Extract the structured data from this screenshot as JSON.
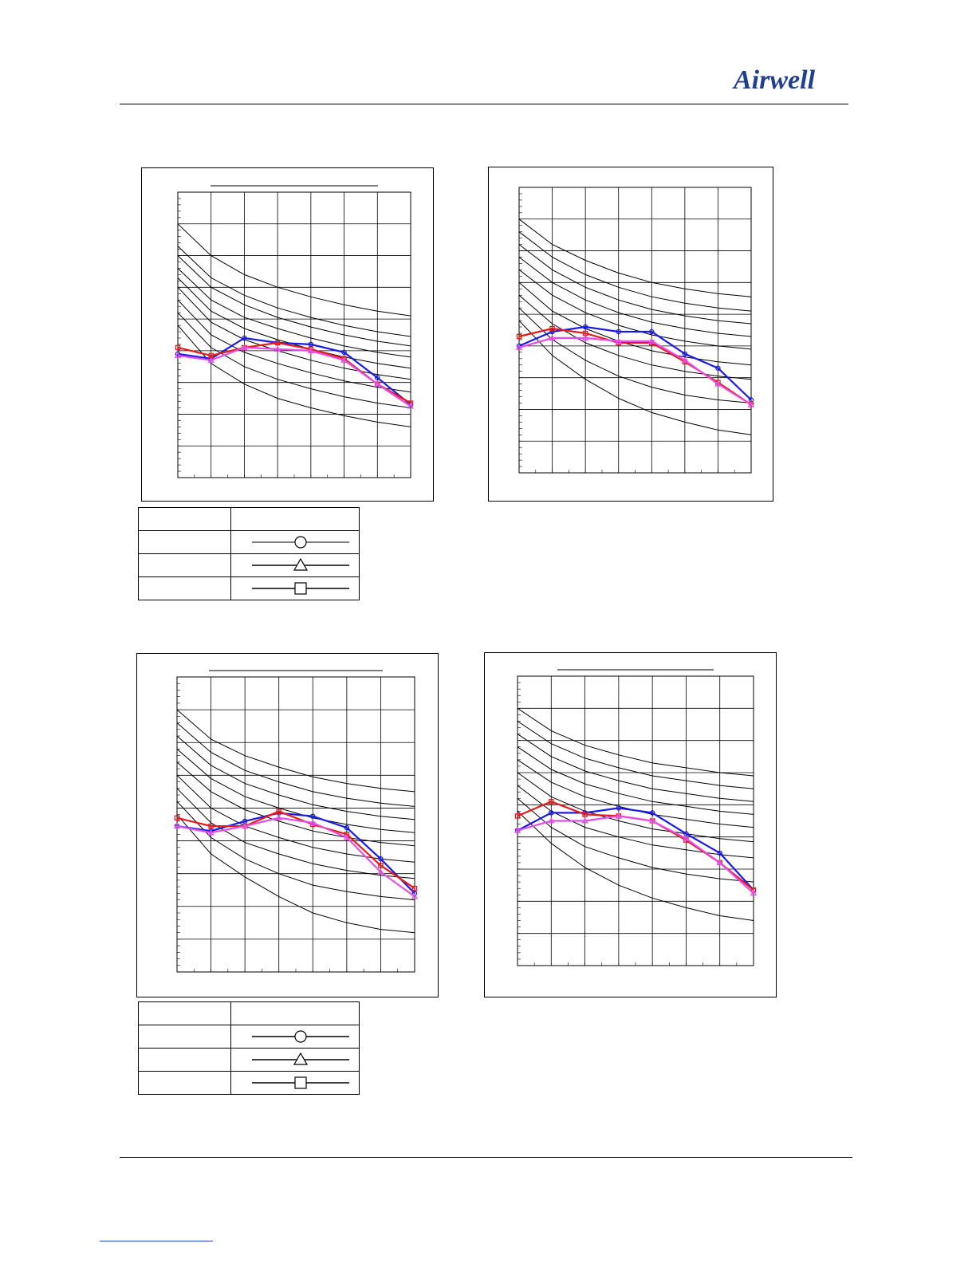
{
  "header": {
    "logo_text": "Airwell",
    "brand_color": "#1f3f93"
  },
  "colors": {
    "blue": "#1a1ae6",
    "red": "#e61a1a",
    "magenta": "#e64de6",
    "curve": "#000000"
  },
  "legends": [
    {
      "rows": [
        {
          "label": "",
          "marker": "circle"
        },
        {
          "label": "",
          "marker": "triangle"
        },
        {
          "label": "",
          "marker": "square"
        }
      ]
    },
    {
      "rows": [
        {
          "label": "",
          "marker": "circle"
        },
        {
          "label": "",
          "marker": "triangle"
        },
        {
          "label": "",
          "marker": "square"
        }
      ]
    }
  ],
  "chart_data": [
    {
      "type": "line",
      "title": "",
      "xlabel": "",
      "ylabel": "",
      "grid": true,
      "xlim": [
        0,
        7
      ],
      "ylim": [
        0,
        9
      ],
      "x": [
        0,
        1,
        2,
        3,
        4,
        5,
        6,
        7
      ],
      "reference_curves": [
        [
          8.0,
          7.0,
          6.4,
          6.0,
          5.7,
          5.45,
          5.25,
          5.1
        ],
        [
          7.3,
          6.3,
          5.75,
          5.35,
          5.05,
          4.8,
          4.6,
          4.45
        ],
        [
          7.0,
          6.0,
          5.45,
          5.05,
          4.75,
          4.5,
          4.3,
          4.15
        ],
        [
          6.6,
          5.6,
          5.05,
          4.7,
          4.4,
          4.15,
          3.95,
          3.8
        ],
        [
          6.3,
          5.25,
          4.7,
          4.35,
          4.05,
          3.8,
          3.6,
          3.45
        ],
        [
          6.0,
          4.9,
          4.35,
          4.0,
          3.7,
          3.45,
          3.25,
          3.1
        ],
        [
          5.6,
          4.5,
          3.95,
          3.6,
          3.3,
          3.05,
          2.85,
          2.7
        ],
        [
          5.2,
          4.1,
          3.5,
          3.1,
          2.8,
          2.55,
          2.35,
          2.2
        ],
        [
          4.8,
          3.6,
          2.95,
          2.5,
          2.2,
          1.95,
          1.75,
          1.6
        ]
      ],
      "series": [
        {
          "marker": "circle",
          "color": "blue",
          "values": [
            3.9,
            3.75,
            4.4,
            4.25,
            4.2,
            3.95,
            3.15,
            2.3
          ]
        },
        {
          "marker": "square",
          "color": "red",
          "values": [
            4.1,
            3.85,
            4.1,
            4.25,
            4.05,
            3.75,
            2.95,
            2.35
          ]
        },
        {
          "marker": "triangle",
          "color": "magenta",
          "values": [
            3.85,
            3.7,
            4.1,
            4.05,
            4.0,
            3.7,
            2.95,
            2.25
          ]
        }
      ]
    },
    {
      "type": "line",
      "title": "",
      "xlabel": "",
      "ylabel": "",
      "grid": true,
      "xlim": [
        0,
        7
      ],
      "ylim": [
        0,
        9
      ],
      "x": [
        0,
        1,
        2,
        3,
        4,
        5,
        6,
        7
      ],
      "reference_curves": [
        [
          8.0,
          7.2,
          6.7,
          6.3,
          6.0,
          5.8,
          5.65,
          5.55
        ],
        [
          7.6,
          6.8,
          6.25,
          5.85,
          5.55,
          5.35,
          5.2,
          5.1
        ],
        [
          7.2,
          6.4,
          5.85,
          5.45,
          5.15,
          4.95,
          4.8,
          4.7
        ],
        [
          6.8,
          6.0,
          5.45,
          5.05,
          4.75,
          4.55,
          4.4,
          4.3
        ],
        [
          6.4,
          5.6,
          5.05,
          4.65,
          4.35,
          4.15,
          4.0,
          3.9
        ],
        [
          6.0,
          5.1,
          4.55,
          4.15,
          3.85,
          3.65,
          3.5,
          3.4
        ],
        [
          5.6,
          4.7,
          4.1,
          3.7,
          3.4,
          3.2,
          3.05,
          2.95
        ],
        [
          5.2,
          4.2,
          3.55,
          3.05,
          2.7,
          2.45,
          2.3,
          2.2
        ],
        [
          4.8,
          3.7,
          2.95,
          2.35,
          1.9,
          1.6,
          1.35,
          1.2
        ]
      ],
      "series": [
        {
          "marker": "circle",
          "color": "blue",
          "values": [
            4.0,
            4.45,
            4.6,
            4.45,
            4.45,
            3.75,
            3.3,
            2.3
          ]
        },
        {
          "marker": "square",
          "color": "red",
          "values": [
            4.3,
            4.55,
            4.4,
            4.1,
            4.1,
            3.5,
            2.85,
            2.15
          ]
        },
        {
          "marker": "triangle",
          "color": "magenta",
          "values": [
            3.95,
            4.25,
            4.25,
            4.15,
            4.15,
            3.55,
            2.8,
            2.15
          ]
        }
      ]
    },
    {
      "type": "line",
      "title": "",
      "xlabel": "",
      "ylabel": "",
      "grid": true,
      "xlim": [
        0,
        7
      ],
      "ylim": [
        0,
        9
      ],
      "x": [
        0,
        1,
        2,
        3,
        4,
        5,
        6,
        7
      ],
      "reference_curves": [
        [
          8.0,
          7.1,
          6.6,
          6.25,
          5.95,
          5.75,
          5.6,
          5.5
        ],
        [
          7.6,
          6.7,
          6.15,
          5.8,
          5.5,
          5.3,
          5.15,
          5.05
        ],
        [
          7.2,
          6.3,
          5.75,
          5.4,
          5.1,
          4.9,
          4.75,
          4.65
        ],
        [
          6.8,
          5.9,
          5.35,
          5.0,
          4.7,
          4.5,
          4.35,
          4.25
        ],
        [
          6.4,
          5.5,
          4.95,
          4.6,
          4.3,
          4.1,
          3.95,
          3.85
        ],
        [
          6.0,
          5.0,
          4.45,
          4.1,
          3.8,
          3.6,
          3.45,
          3.35
        ],
        [
          5.6,
          4.55,
          3.95,
          3.6,
          3.3,
          3.1,
          2.95,
          2.85
        ],
        [
          5.2,
          4.1,
          3.45,
          3.0,
          2.65,
          2.45,
          2.3,
          2.2
        ],
        [
          4.8,
          3.6,
          2.9,
          2.3,
          1.8,
          1.5,
          1.3,
          1.2
        ]
      ],
      "series": [
        {
          "marker": "circle",
          "color": "blue",
          "values": [
            4.45,
            4.3,
            4.6,
            4.85,
            4.75,
            4.4,
            3.45,
            2.4
          ]
        },
        {
          "marker": "square",
          "color": "red",
          "values": [
            4.7,
            4.45,
            4.45,
            4.9,
            4.5,
            4.2,
            3.25,
            2.55
          ]
        },
        {
          "marker": "triangle",
          "color": "magenta",
          "values": [
            4.45,
            4.25,
            4.45,
            4.7,
            4.55,
            4.1,
            3.05,
            2.3
          ]
        }
      ]
    },
    {
      "type": "line",
      "title": "",
      "xlabel": "",
      "ylabel": "",
      "grid": true,
      "xlim": [
        0,
        7
      ],
      "ylim": [
        0,
        9
      ],
      "x": [
        0,
        1,
        2,
        3,
        4,
        5,
        6,
        7
      ],
      "reference_curves": [
        [
          8.0,
          7.3,
          6.85,
          6.55,
          6.3,
          6.15,
          6.0,
          5.9
        ],
        [
          7.6,
          6.9,
          6.45,
          6.15,
          5.9,
          5.75,
          5.6,
          5.5
        ],
        [
          7.2,
          6.5,
          6.05,
          5.75,
          5.5,
          5.35,
          5.2,
          5.1
        ],
        [
          6.8,
          6.1,
          5.65,
          5.35,
          5.1,
          4.95,
          4.8,
          4.7
        ],
        [
          6.4,
          5.7,
          5.25,
          4.95,
          4.7,
          4.55,
          4.4,
          4.3
        ],
        [
          6.0,
          5.25,
          4.8,
          4.5,
          4.25,
          4.1,
          3.95,
          3.85
        ],
        [
          5.6,
          4.8,
          4.3,
          4.0,
          3.75,
          3.6,
          3.45,
          3.35
        ],
        [
          5.2,
          4.3,
          3.7,
          3.35,
          3.05,
          2.85,
          2.7,
          2.6
        ],
        [
          4.8,
          3.8,
          3.05,
          2.5,
          2.1,
          1.8,
          1.55,
          1.4
        ]
      ],
      "series": [
        {
          "marker": "circle",
          "color": "blue",
          "values": [
            4.2,
            4.75,
            4.75,
            4.9,
            4.75,
            4.1,
            3.5,
            2.35
          ]
        },
        {
          "marker": "square",
          "color": "red",
          "values": [
            4.65,
            5.1,
            4.7,
            4.65,
            4.5,
            3.9,
            3.2,
            2.35
          ]
        },
        {
          "marker": "triangle",
          "color": "magenta",
          "values": [
            4.2,
            4.5,
            4.5,
            4.65,
            4.5,
            3.95,
            3.2,
            2.25
          ]
        }
      ]
    }
  ]
}
